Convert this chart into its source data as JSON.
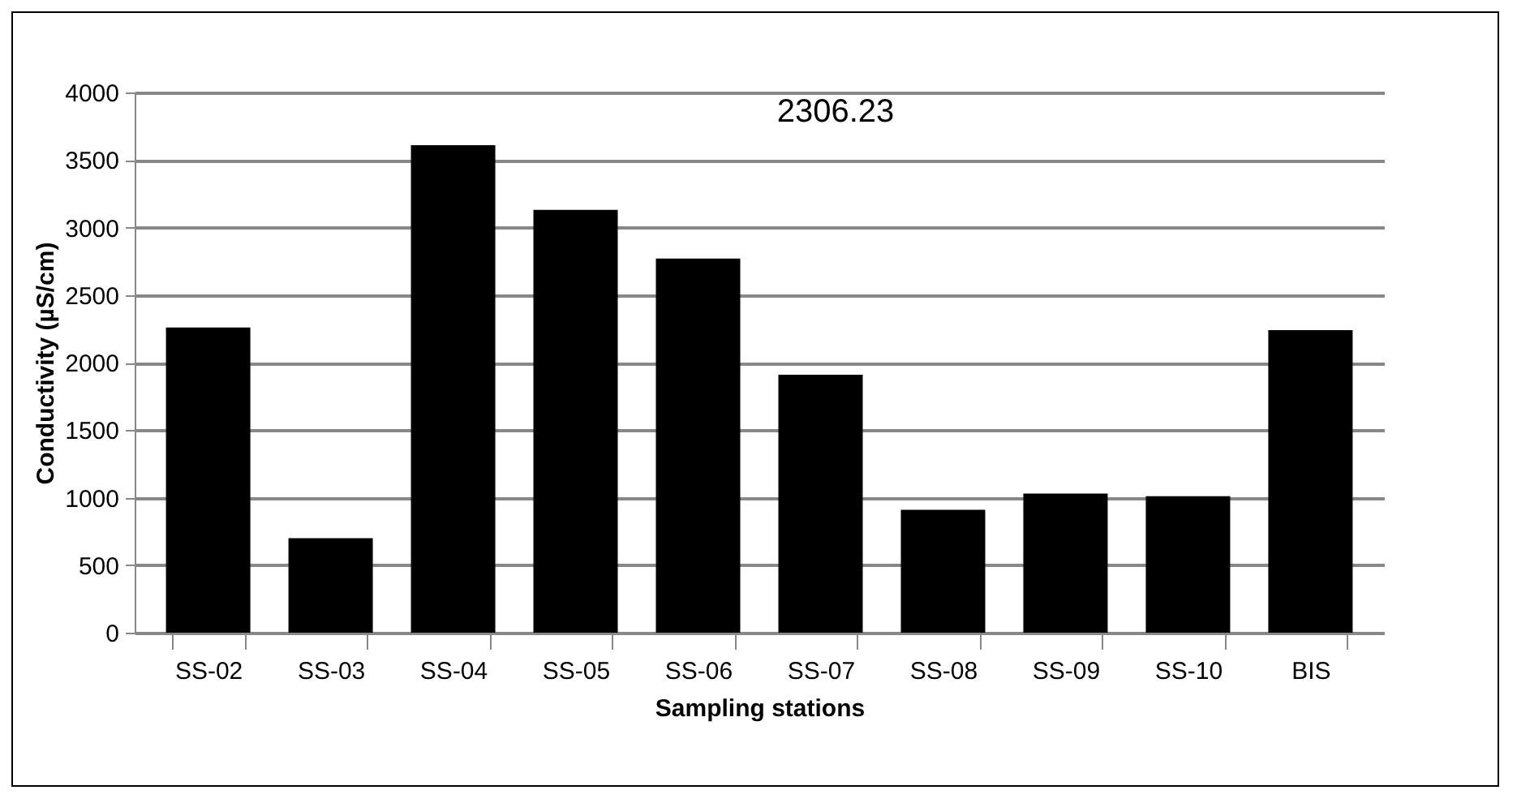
{
  "chart_data": {
    "type": "bar",
    "xlabel": "Sampling stations",
    "ylabel": "Conductivity (µS/cm)",
    "categories": [
      "SS-02",
      "SS-03",
      "SS-04",
      "SS-05",
      "SS-06",
      "SS-07",
      "SS-08",
      "SS-09",
      "SS-10",
      "BIS"
    ],
    "values": [
      2260,
      700,
      3610,
      3130,
      2770,
      1910,
      910,
      1030,
      1010,
      2240
    ],
    "color": "#000000",
    "ylim": [
      0,
      4000
    ],
    "yticks": [
      0,
      500,
      1000,
      1500,
      2000,
      2500,
      3000,
      3500,
      4000
    ],
    "grid": "y",
    "annotations": [
      "2306.23"
    ]
  }
}
